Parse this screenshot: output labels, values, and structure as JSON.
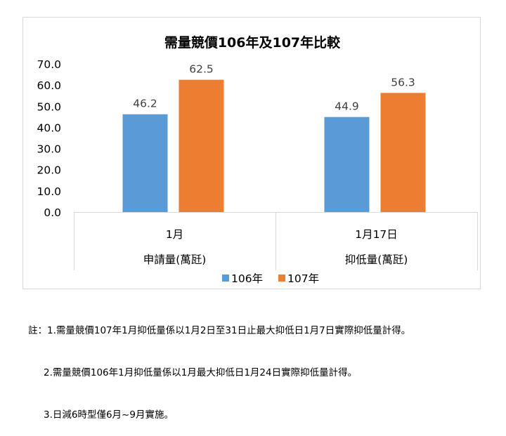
{
  "chart_data": {
    "type": "bar",
    "title": "需量競價106年及107年比較",
    "groups": [
      {
        "label": "1月",
        "category": "申請量(萬瓩)"
      },
      {
        "label": "1月17日",
        "category": "抑低量(萬瓩)"
      }
    ],
    "series": [
      {
        "name": "106年",
        "color": "#5b9bd5",
        "values": [
          46.2,
          44.9
        ]
      },
      {
        "name": "107年",
        "color": "#ed7d31",
        "values": [
          62.5,
          56.3
        ]
      }
    ],
    "ylim": [
      0,
      70
    ],
    "yticks": [
      "0.0",
      "10.0",
      "20.0",
      "30.0",
      "40.0",
      "50.0",
      "60.0",
      "70.0"
    ],
    "data_labels": [
      [
        "46.2",
        "44.9"
      ],
      [
        "62.5",
        "56.3"
      ]
    ],
    "grid": false,
    "legend": "bottom"
  },
  "notes": {
    "line1": "註：1.需量競價107年1月抑低量係以1月2日至31日止最大抑低日1月7日實際抑低量計得。",
    "line2": "2.需量競價106年1月抑低量係以1月最大抑低日1月24日實際抑低量計得。",
    "line3": "3.日減6時型僅6月~9月實施。"
  }
}
